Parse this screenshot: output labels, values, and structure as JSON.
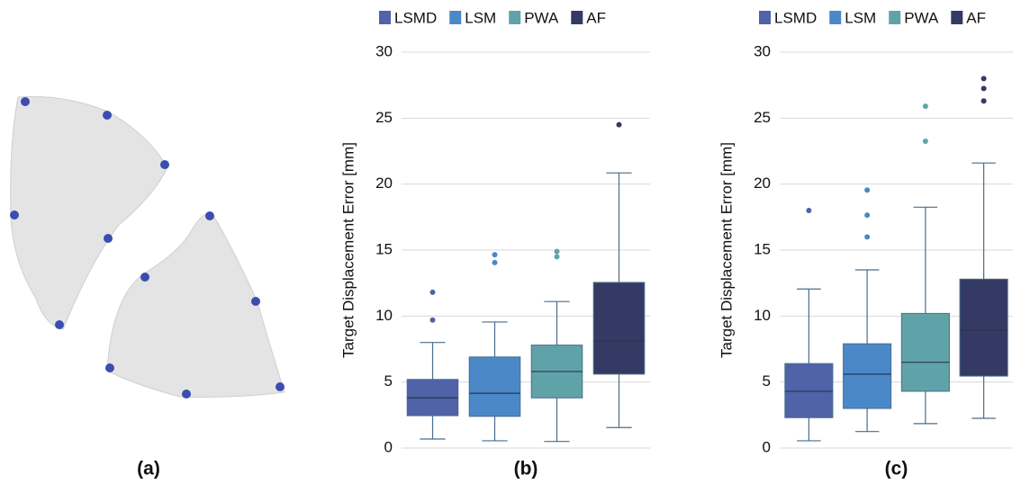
{
  "panel_a": {
    "caption": "(a)"
  },
  "chart_data": [
    {
      "type": "box",
      "caption": "(b)",
      "ylabel": "Target Displacement Error [mm]",
      "ylim": [
        0,
        30
      ],
      "yticks": [
        0,
        5,
        10,
        15,
        20,
        25,
        30
      ],
      "grid": true,
      "series": [
        {
          "name": "LSMD",
          "color": "#5062a8",
          "whislo": 0.68,
          "q1": 2.45,
          "med": 3.8,
          "q3": 5.2,
          "whishi": 8.0,
          "fliers": [
            9.7,
            11.8
          ]
        },
        {
          "name": "LSM",
          "color": "#4a88c8",
          "whislo": 0.55,
          "q1": 2.4,
          "med": 4.15,
          "q3": 6.9,
          "whishi": 9.55,
          "fliers": [
            14.05,
            14.65
          ]
        },
        {
          "name": "PWA",
          "color": "#5fa3a8",
          "whislo": 0.5,
          "q1": 3.8,
          "med": 5.8,
          "q3": 7.8,
          "whishi": 11.1,
          "fliers": [
            14.5,
            14.9
          ]
        },
        {
          "name": "AF",
          "color": "#343a63",
          "whislo": 1.55,
          "q1": 5.6,
          "med": 8.1,
          "q3": 12.55,
          "whishi": 20.85,
          "fliers": [
            24.5
          ]
        }
      ]
    },
    {
      "type": "box",
      "caption": "(c)",
      "ylabel": "Target Displacement Error [mm]",
      "ylim": [
        0,
        30
      ],
      "yticks": [
        0,
        5,
        10,
        15,
        20,
        25,
        30
      ],
      "grid": true,
      "series": [
        {
          "name": "LSMD",
          "color": "#5062a8",
          "whislo": 0.55,
          "q1": 2.3,
          "med": 4.3,
          "q3": 6.4,
          "whishi": 12.05,
          "fliers": [
            18.0
          ]
        },
        {
          "name": "LSM",
          "color": "#4a88c8",
          "whislo": 1.25,
          "q1": 3.0,
          "med": 5.6,
          "q3": 7.9,
          "whishi": 13.5,
          "fliers": [
            16.0,
            17.65,
            19.55
          ]
        },
        {
          "name": "PWA",
          "color": "#5fa3a8",
          "whislo": 1.85,
          "q1": 4.3,
          "med": 6.5,
          "q3": 10.2,
          "whishi": 18.25,
          "fliers": [
            23.25,
            25.9
          ]
        },
        {
          "name": "AF",
          "color": "#343a63",
          "whislo": 2.25,
          "q1": 5.45,
          "med": 8.95,
          "q3": 12.8,
          "whishi": 21.6,
          "fliers": [
            26.3,
            27.25,
            28.0
          ]
        }
      ]
    }
  ]
}
